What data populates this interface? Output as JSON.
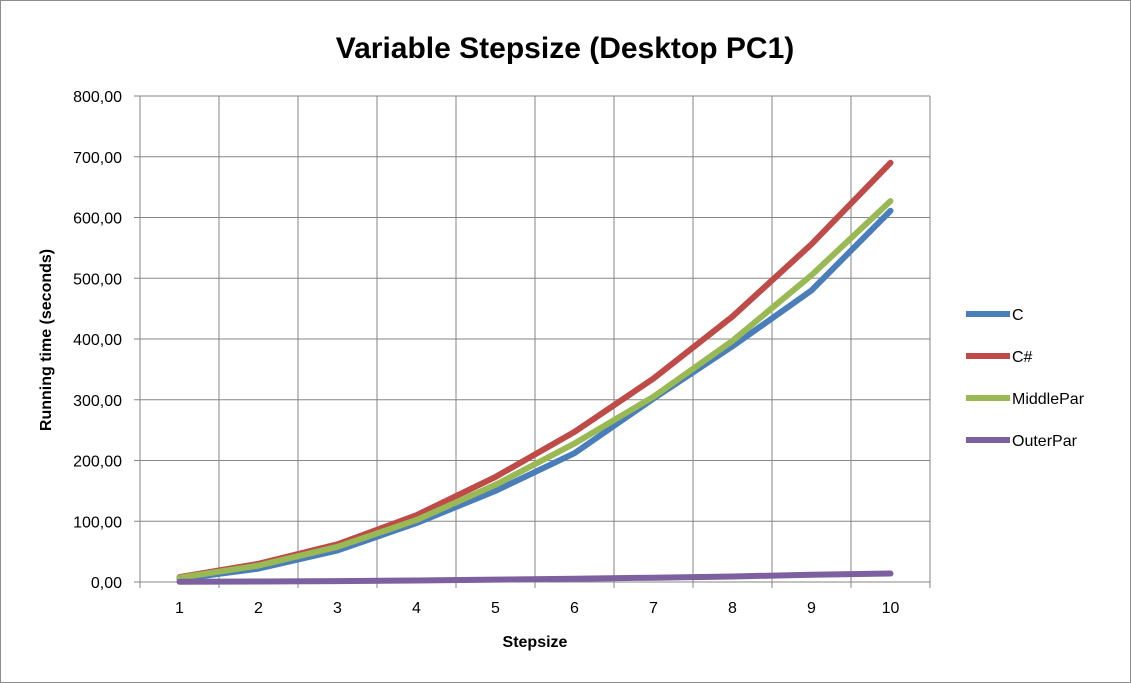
{
  "chart_data": {
    "type": "line",
    "title": "Variable Stepsize (Desktop PC1)",
    "xlabel": "Stepsize",
    "ylabel": "Running time (seconds)",
    "x": [
      1,
      2,
      3,
      4,
      5,
      6,
      7,
      8,
      9,
      10
    ],
    "x_tick_labels": [
      "1",
      "2",
      "3",
      "4",
      "5",
      "6",
      "7",
      "8",
      "9",
      "10"
    ],
    "ylim": [
      0,
      800
    ],
    "y_ticks": [
      0,
      100,
      200,
      300,
      400,
      500,
      600,
      700,
      800
    ],
    "y_tick_labels": [
      "0,00",
      "100,00",
      "200,00",
      "300,00",
      "400,00",
      "500,00",
      "600,00",
      "700,00",
      "800,00"
    ],
    "grid": true,
    "legend_position": "right",
    "series": [
      {
        "name": "C",
        "color": "#4a7ebb",
        "values": [
          5,
          22,
          52,
          97,
          150,
          212,
          302,
          388,
          480,
          611
        ]
      },
      {
        "name": "C#",
        "color": "#be4b48",
        "values": [
          8,
          30,
          62,
          110,
          173,
          247,
          335,
          437,
          556,
          690
        ]
      },
      {
        "name": "MiddlePar",
        "color": "#98b954",
        "values": [
          7,
          27,
          58,
          102,
          160,
          228,
          305,
          397,
          505,
          627
        ]
      },
      {
        "name": "OuterPar",
        "color": "#7d60a0",
        "values": [
          0.5,
          0.8,
          1.5,
          2.5,
          4,
          5.5,
          7,
          9,
          12,
          14
        ]
      }
    ]
  }
}
